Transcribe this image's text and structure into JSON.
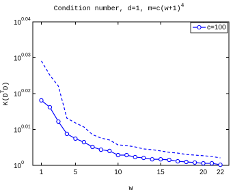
{
  "chart_data": {
    "type": "line",
    "title": "Condition number, d=1, m=c(w+1)",
    "title_exponent": "4",
    "x_label": "w",
    "y_label": [
      "K(D",
      "T",
      "D)"
    ],
    "x": [
      1,
      2,
      3,
      4,
      5,
      6,
      7,
      8,
      9,
      10,
      11,
      12,
      13,
      14,
      15,
      16,
      17,
      18,
      19,
      20,
      21,
      22
    ],
    "series": [
      {
        "name": "c=100",
        "color": "#0000ff",
        "line_style": "solid",
        "marker": "circle",
        "values": [
          1.0426,
          1.038,
          1.0285,
          1.0204,
          1.0173,
          1.015,
          1.0119,
          1.0101,
          1.0093,
          1.0066,
          1.0066,
          1.0053,
          1.0048,
          1.0039,
          1.0039,
          1.0035,
          1.0026,
          1.0022,
          1.0018,
          1.0013,
          1.0013,
          1.0004
        ]
      },
      {
        "color": "#0000ff",
        "line_style": "dashed",
        "values": [
          1.0694,
          1.0596,
          1.0522,
          1.0307,
          1.0276,
          1.0249,
          1.0199,
          1.0177,
          1.0164,
          1.0132,
          1.0128,
          1.0119,
          1.0106,
          1.0101,
          1.0093,
          1.0084,
          1.0079,
          1.007,
          1.0066,
          1.0062,
          1.0057,
          1.0048
        ]
      }
    ],
    "xlim": [
      0,
      23
    ],
    "xticks": [
      1,
      5,
      10,
      15,
      20,
      22
    ],
    "ylim": [
      1,
      1.09648
    ],
    "y_log": true,
    "yticks": [
      {
        "value": 1,
        "label": "10",
        "exponent": "0"
      },
      {
        "value": 1.02329,
        "label": "10",
        "exponent": "0.01"
      },
      {
        "value": 1.04713,
        "label": "10",
        "exponent": "0.02"
      },
      {
        "value": 1.07152,
        "label": "10",
        "exponent": "0.03"
      },
      {
        "value": 1.09648,
        "label": "10",
        "exponent": "0.04"
      }
    ],
    "grid": false,
    "legend": "top-right"
  }
}
